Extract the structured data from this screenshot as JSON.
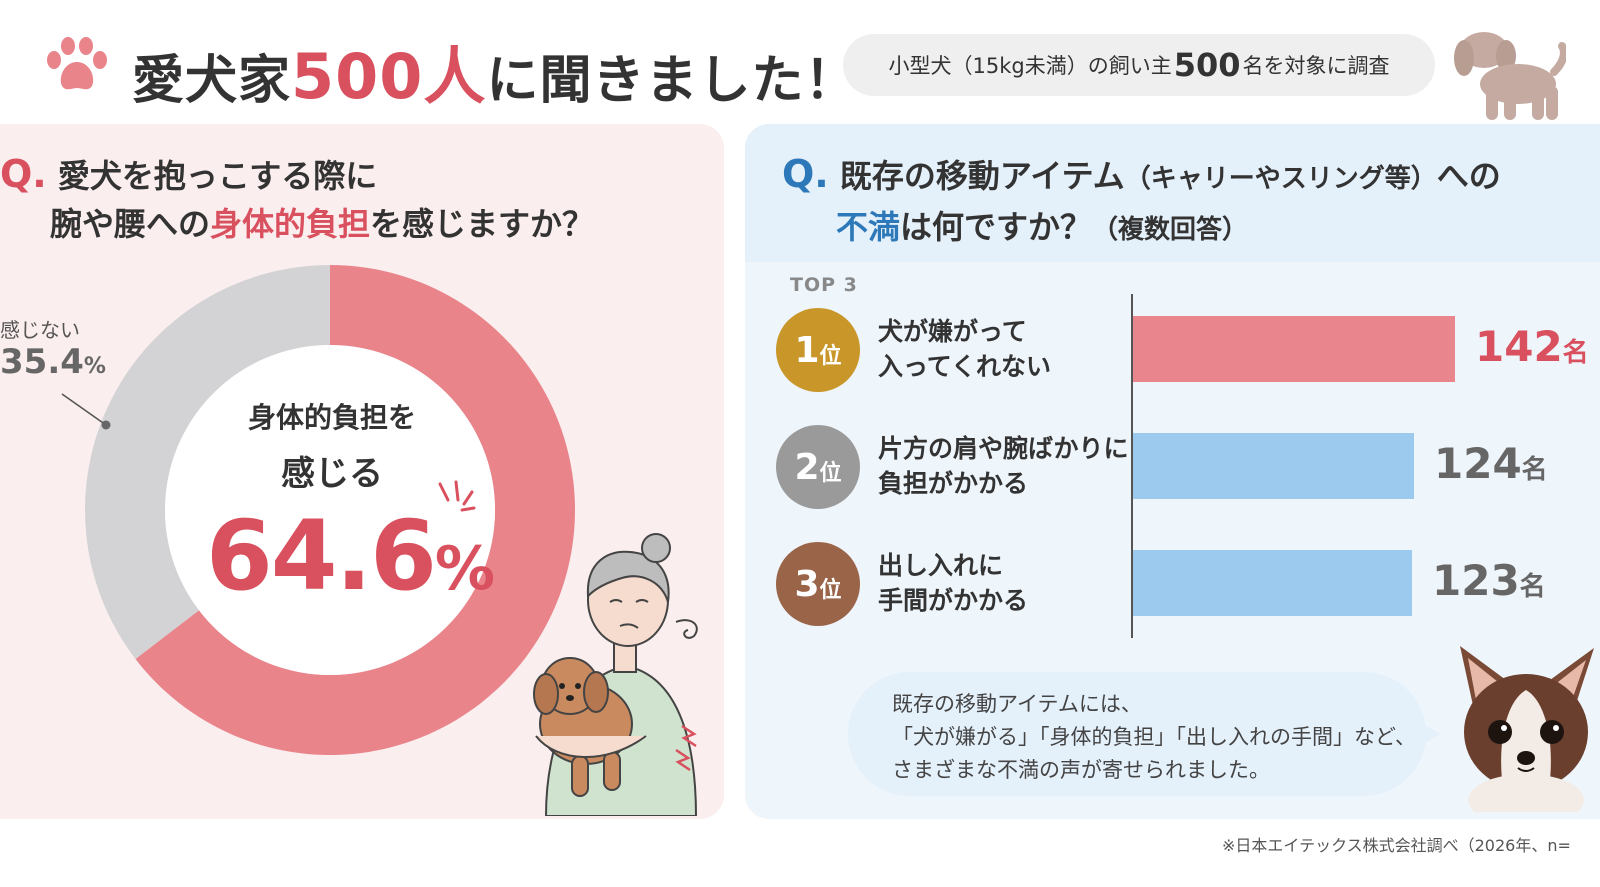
{
  "header": {
    "title_prefix": "愛犬家",
    "title_highlight": "500人",
    "title_suffix": "に聞きました！",
    "subtitle_prefix": "小型犬（15kg未満）の飼い主",
    "subtitle_number": "500",
    "subtitle_suffix": "名を対象に調査"
  },
  "left_panel": {
    "q_mark": "Q.",
    "question_line1": "愛犬を抱っこする際に",
    "question_line2_prefix": "腕や腰への",
    "question_line2_highlight": "身体的負担",
    "question_line2_suffix": "を感じますか？",
    "center_label_line1": "身体的負担を",
    "center_label_line2": "感じる",
    "center_value": "64.6",
    "center_unit": "%",
    "other_label": "感じない",
    "other_value": "35.4",
    "other_unit": "%"
  },
  "right_panel": {
    "q_mark": "Q.",
    "question_line1_main": "既存の移動アイテム",
    "question_line1_small": "（キャリーやスリング等）",
    "question_line1_end": "への",
    "question_line2_highlight": "不満",
    "question_line2_main": "は何ですか？",
    "question_line2_small": "（複数回答）",
    "top_label": "TOP 3",
    "rank_suffix": "位",
    "ranks": [
      {
        "rank": "1",
        "line1": "犬が嫌がって",
        "line2": "入ってくれない",
        "value": "142",
        "unit": "名"
      },
      {
        "rank": "2",
        "line1": "片方の肩や腕ばかりに",
        "line2": "負担がかかる",
        "value": "124",
        "unit": "名"
      },
      {
        "rank": "3",
        "line1": "出し入れに",
        "line2": "手間がかかる",
        "value": "123",
        "unit": "名"
      }
    ],
    "bubble_line1": "既存の移動アイテムには、",
    "bubble_line2": "「犬が嫌がる」「身体的負担」「出し入れの手間」など、",
    "bubble_line3": "さまざまな不満の声が寄せられました。"
  },
  "footnote": "※日本エイテックス株式会社調べ（2026年、n=",
  "colors": {
    "accent_pink": "#d9505e",
    "donut_pink": "#e9848b",
    "donut_gray": "#d3d3d6",
    "bar_pink": "#e9868d",
    "bar_blue": "#9ccaee",
    "accent_blue": "#2d78b8",
    "gold": "#c9962a",
    "silver": "#9a9a9a",
    "bronze": "#9a6448"
  },
  "chart_data": [
    {
      "type": "pie",
      "variant": "donut",
      "labels": [
        "身体的負担を感じる",
        "感じない"
      ],
      "values": [
        64.6,
        35.4
      ],
      "unit": "%",
      "colors": [
        "#e9848b",
        "#d3d3d6"
      ]
    },
    {
      "type": "bar",
      "orientation": "horizontal",
      "categories": [
        "犬が嫌がって入ってくれない",
        "片方の肩や腕ばかりに負担がかかる",
        "出し入れに手間がかかる"
      ],
      "values": [
        142,
        124,
        123
      ],
      "unit": "名",
      "colors": [
        "#e9868d",
        "#9ccaee",
        "#9ccaee"
      ]
    }
  ]
}
